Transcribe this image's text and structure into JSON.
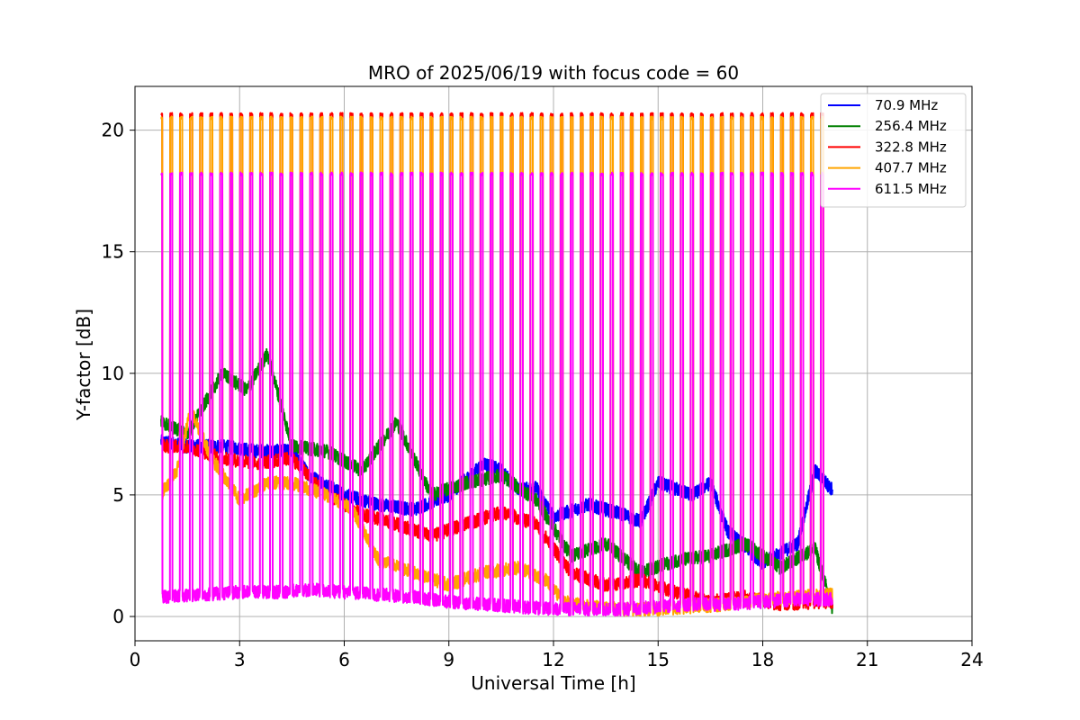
{
  "chart_data": {
    "type": "line",
    "title": "MRO of 2025/06/19 with focus code = 60",
    "xlabel": "Universal Time [h]",
    "ylabel": "Y-factor [dB]",
    "xlim": [
      0,
      24
    ],
    "ylim": [
      -1,
      21.8
    ],
    "xticks": [
      0,
      3,
      6,
      9,
      12,
      15,
      18,
      21,
      24
    ],
    "yticks": [
      0,
      5,
      10,
      15,
      20
    ],
    "grid": true,
    "legend_position": "top-right",
    "x_range_data": [
      0.75,
      20.0
    ],
    "calibration_spikes": {
      "count": 67,
      "start_h": 0.75,
      "end_h": 19.7
    },
    "series": [
      {
        "name": "70.9 MHz",
        "color": "#0000ff",
        "x": [
          0.75,
          1.5,
          2.5,
          3.5,
          4.5,
          5,
          6,
          7,
          8,
          9,
          10,
          10.5,
          11,
          11.5,
          12,
          13,
          14,
          14.5,
          15,
          16,
          16.5,
          17,
          18,
          19,
          19.5,
          20
        ],
        "y": [
          7.2,
          7.0,
          7.0,
          6.8,
          6.8,
          5.8,
          5.0,
          4.6,
          4.4,
          5.0,
          6.3,
          6.0,
          5.2,
          5.3,
          4.1,
          4.6,
          4.2,
          3.9,
          5.5,
          5.0,
          5.5,
          3.5,
          2.2,
          3.0,
          6.0,
          5.2
        ]
      },
      {
        "name": "256.4 MHz",
        "color": "#008000",
        "x": [
          0.75,
          1.5,
          2.5,
          3.2,
          3.8,
          4.5,
          5.5,
          6.5,
          7.5,
          8.5,
          9.5,
          10.5,
          11.5,
          12.5,
          13.5,
          14.5,
          15.5,
          16.5,
          17.5,
          18.5,
          19.5,
          20
        ],
        "y": [
          8.0,
          7.5,
          10.0,
          9.3,
          10.8,
          7.0,
          6.8,
          6.0,
          8.0,
          5.0,
          5.5,
          5.8,
          4.8,
          2.5,
          3.0,
          1.8,
          2.3,
          2.5,
          3.0,
          2.0,
          2.8,
          0.3
        ]
      },
      {
        "name": "322.8 MHz",
        "color": "#ff0000",
        "x": [
          0.75,
          1.5,
          2.5,
          3.5,
          4.5,
          5.5,
          6.5,
          7.5,
          8.5,
          9.5,
          10.5,
          11.5,
          12.5,
          13.5,
          14.5,
          15.5,
          16.5,
          17.5,
          18.5,
          19.5,
          20
        ],
        "y": [
          7.0,
          7.0,
          6.5,
          6.3,
          6.5,
          5.0,
          4.2,
          3.8,
          3.3,
          3.8,
          4.3,
          3.8,
          1.8,
          1.3,
          1.5,
          1.0,
          0.6,
          0.8,
          0.5,
          0.6,
          0.6
        ]
      },
      {
        "name": "407.7 MHz",
        "color": "#ffa500",
        "x": [
          0.75,
          1.2,
          1.6,
          2.2,
          3.0,
          3.8,
          4.5,
          5.5,
          6.2,
          7.0,
          8.0,
          9.0,
          10.0,
          11.0,
          11.8,
          12.3,
          13.0,
          14.0,
          15.0,
          16.0,
          17.0,
          18.0,
          19.0,
          20.0
        ],
        "y": [
          5.0,
          6.0,
          8.5,
          6.5,
          4.8,
          5.5,
          5.5,
          5.0,
          4.5,
          2.3,
          1.8,
          1.3,
          1.8,
          2.0,
          1.5,
          0.6,
          0.4,
          0.3,
          0.3,
          0.4,
          0.5,
          0.7,
          0.8,
          0.9
        ]
      },
      {
        "name": "611.5 MHz",
        "color": "#ff00ff",
        "x": [
          0.75,
          2,
          3,
          4,
          5,
          6,
          7,
          8,
          9,
          10,
          11,
          12,
          13,
          14,
          15,
          16,
          17,
          18,
          19,
          20
        ],
        "y": [
          0.8,
          0.9,
          1.0,
          1.0,
          1.1,
          1.0,
          0.9,
          0.8,
          0.6,
          0.5,
          0.4,
          0.3,
          0.3,
          0.3,
          0.4,
          0.5,
          0.5,
          0.6,
          0.7,
          0.7
        ]
      }
    ],
    "spike_levels": {
      "322.8 MHz": 20.65,
      "407.7 MHz": 20.5,
      "611.5 MHz": 18.2
    }
  }
}
